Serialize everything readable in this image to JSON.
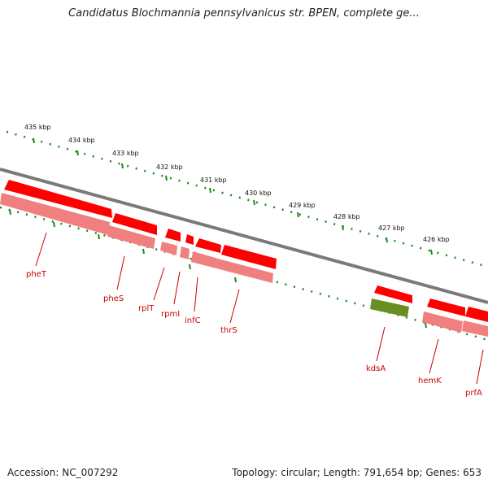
{
  "title": "Candidatus Blochmannia pennsylvanicus str. BPEN, complete ge...",
  "footer": {
    "accession": "Accession: NC_007292",
    "topology": "Topology: circular; Length: 791,654 bp; Genes: 653"
  },
  "colors": {
    "backbone": "#7a7a7a",
    "gene_forward": "#ff0000",
    "gene_shadow": "#f08080",
    "rna_gene": "#6b8e23",
    "tick": "#1a8a1a",
    "label": "#cc0000"
  },
  "ruler": {
    "labels": [
      "435 kbp",
      "434 kbp",
      "433 kbp",
      "432 kbp",
      "431 kbp",
      "430 kbp",
      "429 kbp",
      "428 kbp",
      "427 kbp",
      "426 kbp"
    ]
  },
  "genes": [
    {
      "name": "pheT",
      "type": "protein"
    },
    {
      "name": "pheS",
      "type": "protein"
    },
    {
      "name": "rplT",
      "type": "protein"
    },
    {
      "name": "rpmI",
      "type": "protein"
    },
    {
      "name": "infC",
      "type": "protein"
    },
    {
      "name": "thrS",
      "type": "protein"
    },
    {
      "name": "kdsA",
      "type": "protein"
    },
    {
      "name": "hemK",
      "type": "protein"
    },
    {
      "name": "prfA",
      "type": "protein"
    }
  ]
}
